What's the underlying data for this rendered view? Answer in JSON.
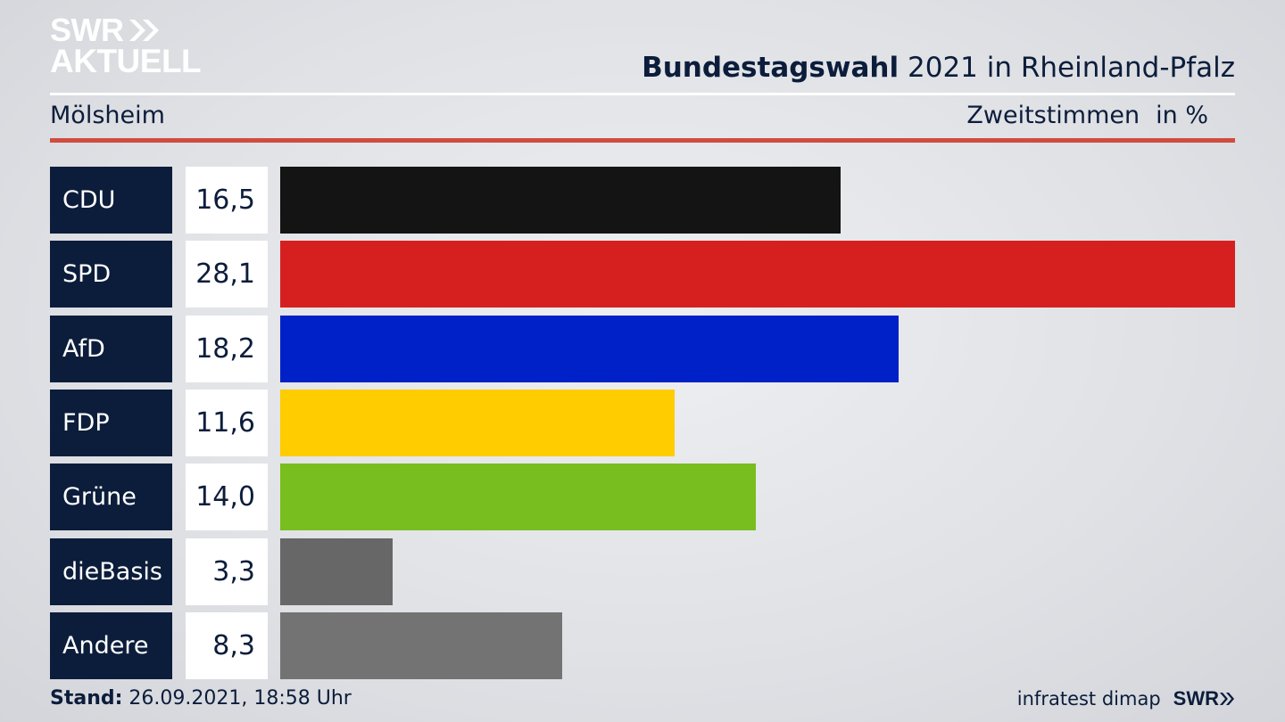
{
  "logo": {
    "line1": "SWR",
    "line2": "AKTUELL"
  },
  "header": {
    "title_bold": "Bundestagswahl",
    "title_rest": "2021 in Rheinland-Pfalz",
    "region": "Mölsheim",
    "metric": "Zweitstimmen",
    "unit": "in %"
  },
  "footer": {
    "stand_label": "Stand:",
    "stand_value": "26.09.2021, 18:58 Uhr",
    "source": "infratest dimap",
    "brand": "SWR"
  },
  "chart_data": {
    "type": "bar",
    "orientation": "horizontal",
    "categories": [
      "CDU",
      "SPD",
      "AfD",
      "FDP",
      "Grüne",
      "dieBasis",
      "Andere"
    ],
    "values": [
      16.5,
      28.1,
      18.2,
      11.6,
      14.0,
      3.3,
      8.3
    ],
    "value_labels": [
      "16,5",
      "28,1",
      "18,2",
      "11,6",
      "14,0",
      "3,3",
      "8,3"
    ],
    "colors": [
      "#141414",
      "#d62020",
      "#0021c8",
      "#ffcc00",
      "#78be1e",
      "#676767",
      "#737373"
    ],
    "title": "Bundestagswahl 2021 in Rheinland-Pfalz",
    "xlim": [
      0,
      28.1
    ]
  }
}
